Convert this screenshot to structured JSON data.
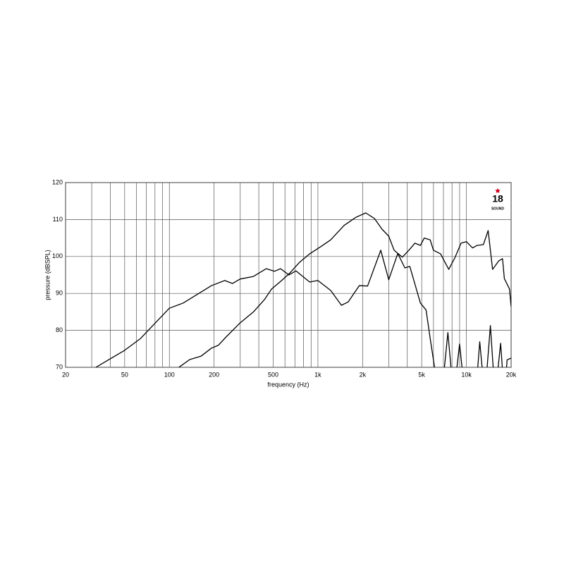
{
  "chart_data": {
    "type": "line",
    "xlabel": "frequency (Hz)",
    "ylabel": "pressure (dBSPL)",
    "logo": {
      "text": "18",
      "subtitle": "SOUND"
    },
    "xscale": "log",
    "grid": true,
    "xlim": [
      20,
      20000
    ],
    "ylim": [
      70,
      120
    ],
    "xticks": [
      20,
      50,
      100,
      200,
      500,
      {
        "value": 1000,
        "label": "1k"
      },
      {
        "value": 2000,
        "label": "2k"
      },
      {
        "value": 5000,
        "label": "5k"
      },
      {
        "value": 10000,
        "label": "10k"
      },
      {
        "value": 20000,
        "label": "20k"
      }
    ],
    "xminor": [
      30,
      40,
      60,
      70,
      80,
      90,
      300,
      400,
      600,
      700,
      800,
      900,
      3000,
      4000,
      6000,
      7000,
      8000,
      9000
    ],
    "yticks": [
      70,
      80,
      90,
      100,
      110,
      120
    ],
    "series": [
      {
        "color": "#000000",
        "x": [
          32,
          50,
          64,
          100,
          124,
          192,
          236,
          266,
          299,
          368,
          449,
          510,
          560,
          639,
          712,
          880,
          1000,
          1220,
          1440,
          1600,
          1900,
          2160,
          2650,
          3000,
          3450,
          3850,
          4160,
          4900,
          5350,
          5700,
          6100,
          6800,
          7500,
          8200,
          9000,
          9800,
          11500,
          12300,
          13300,
          14500,
          15600,
          17000,
          18000,
          18800,
          20000
        ],
        "values": [
          70,
          74.6,
          77.8,
          86,
          87.4,
          92.1,
          93.5,
          92.7,
          93.9,
          94.6,
          96.7,
          96,
          96.7,
          95,
          96.1,
          93.1,
          93.5,
          90.8,
          86.8,
          87.7,
          92.1,
          92,
          101.7,
          93.7,
          100.8,
          96.9,
          97.3,
          87.4,
          85.5,
          77.8,
          70,
          62,
          79.4,
          62,
          76.3,
          62,
          62,
          76.9,
          62,
          81.3,
          62,
          76.5,
          62,
          72,
          72.5
        ]
      },
      {
        "color": "#000000",
        "x": [
          116,
          137,
          163,
          192,
          214,
          241,
          299,
          368,
          436,
          488,
          570,
          650,
          751,
          880,
          1040,
          1220,
          1500,
          1800,
          2100,
          2400,
          2700,
          3000,
          3260,
          3700,
          4100,
          4500,
          4900,
          5200,
          5700,
          6000,
          6700,
          7600,
          8400,
          9200,
          10000,
          11000,
          11800,
          13000,
          14000,
          15000,
          16500,
          17500,
          18000,
          19500,
          20000
        ],
        "values": [
          70,
          72.1,
          73,
          75.2,
          76,
          78.2,
          82,
          85,
          88.3,
          91.2,
          93.5,
          95.6,
          98.4,
          100.7,
          102.6,
          104.5,
          108.4,
          110.6,
          111.8,
          110.3,
          107.4,
          105.5,
          101.7,
          99.8,
          101.7,
          103.6,
          103,
          105,
          104.5,
          101.7,
          100.7,
          96.5,
          99.8,
          103.6,
          104,
          102.3,
          103,
          103.2,
          107,
          96.5,
          98.8,
          99.4,
          94,
          91.2,
          86.4
        ]
      }
    ]
  }
}
